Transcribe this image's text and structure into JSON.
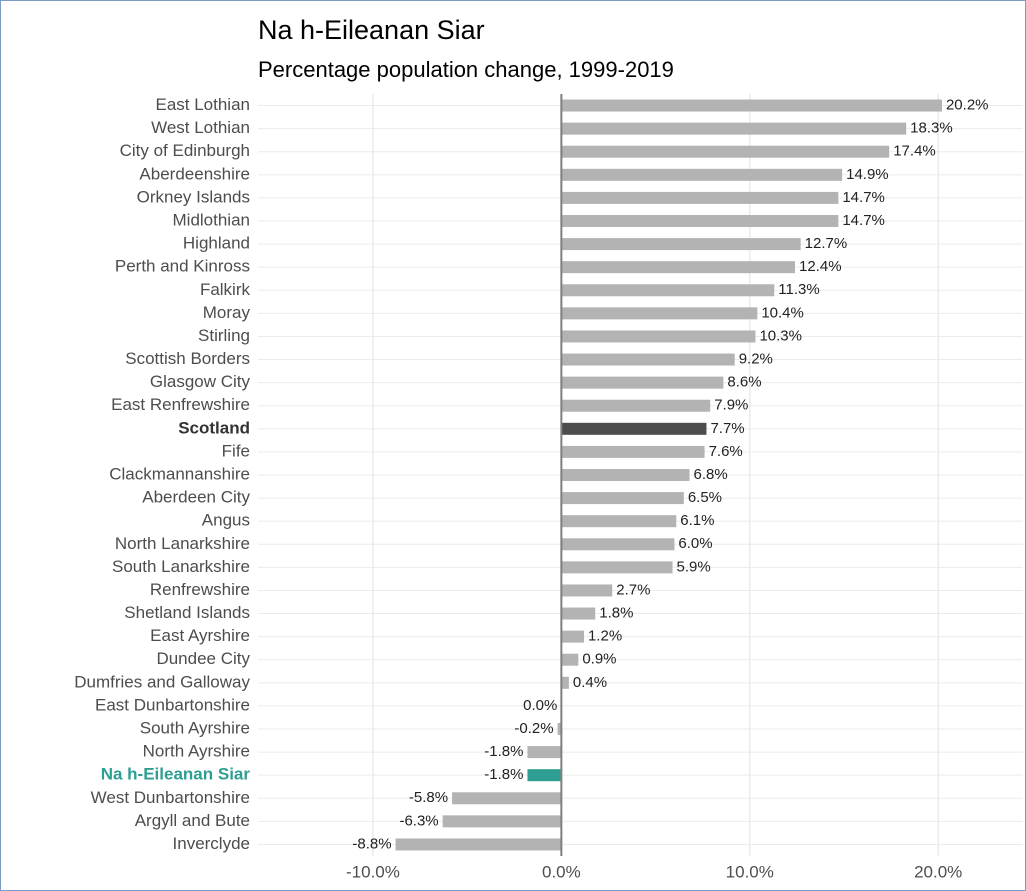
{
  "chart_data": {
    "type": "hbar",
    "title": "Na h-Eileanan Siar",
    "subtitle": "Percentage population change, 1999-2019",
    "categories": [
      "East Lothian",
      "West Lothian",
      "City of Edinburgh",
      "Aberdeenshire",
      "Orkney Islands",
      "Midlothian",
      "Highland",
      "Perth and Kinross",
      "Falkirk",
      "Moray",
      "Stirling",
      "Scottish Borders",
      "Glasgow City",
      "East Renfrewshire",
      "Scotland",
      "Fife",
      "Clackmannanshire",
      "Aberdeen City",
      "Angus",
      "North Lanarkshire",
      "South Lanarkshire",
      "Renfrewshire",
      "Shetland Islands",
      "East Ayrshire",
      "Dundee City",
      "Dumfries and Galloway",
      "East Dunbartonshire",
      "South Ayrshire",
      "North Ayrshire",
      "Na h-Eileanan Siar",
      "West Dunbartonshire",
      "Argyll and Bute",
      "Inverclyde"
    ],
    "values": [
      20.2,
      18.3,
      17.4,
      14.9,
      14.7,
      14.7,
      12.7,
      12.4,
      11.3,
      10.4,
      10.3,
      9.2,
      8.6,
      7.9,
      7.7,
      7.6,
      6.8,
      6.5,
      6.1,
      6.0,
      5.9,
      2.7,
      1.8,
      1.2,
      0.9,
      0.4,
      0.0,
      -0.2,
      -1.8,
      -1.8,
      -5.8,
      -6.3,
      -8.8
    ],
    "value_labels": [
      "20.2%",
      "18.3%",
      "17.4%",
      "14.9%",
      "14.7%",
      "14.7%",
      "12.7%",
      "12.4%",
      "11.3%",
      "10.4%",
      "10.3%",
      "9.2%",
      "8.6%",
      "7.9%",
      "7.7%",
      "7.6%",
      "6.8%",
      "6.5%",
      "6.1%",
      "6.0%",
      "5.9%",
      "2.7%",
      "1.8%",
      "1.2%",
      "0.9%",
      "0.4%",
      "0.0%",
      "-0.2%",
      "-1.8%",
      "-1.8%",
      "-5.8%",
      "-6.3%",
      "-8.8%"
    ],
    "color": "#b3b3b3",
    "colors": [
      "#b3b3b3",
      "#b3b3b3",
      "#b3b3b3",
      "#b3b3b3",
      "#b3b3b3",
      "#b3b3b3",
      "#b3b3b3",
      "#b3b3b3",
      "#b3b3b3",
      "#b3b3b3",
      "#b3b3b3",
      "#b3b3b3",
      "#b3b3b3",
      "#b3b3b3",
      "#4d4d4d",
      "#b3b3b3",
      "#b3b3b3",
      "#b3b3b3",
      "#b3b3b3",
      "#b3b3b3",
      "#b3b3b3",
      "#b3b3b3",
      "#b3b3b3",
      "#b3b3b3",
      "#b3b3b3",
      "#b3b3b3",
      "#b3b3b3",
      "#b3b3b3",
      "#b3b3b3",
      "#2e9e92",
      "#b3b3b3",
      "#b3b3b3",
      "#b3b3b3"
    ],
    "xlim": [
      -16.1,
      24.5
    ],
    "xticks": [
      {
        "value": -10,
        "label": "-10.0%"
      },
      {
        "value": 0,
        "label": "0.0%"
      },
      {
        "value": 10,
        "label": "10.0%"
      },
      {
        "value": 20,
        "label": "20.0%"
      }
    ],
    "grid": true
  }
}
